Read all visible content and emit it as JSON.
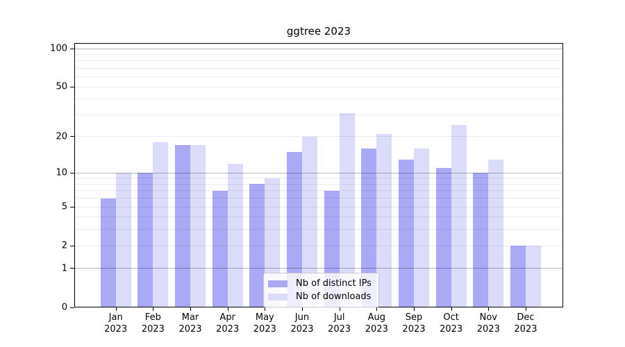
{
  "chart_data": {
    "type": "bar",
    "title": "ggtree 2023",
    "year": "2023",
    "months": [
      "Jan",
      "Feb",
      "Mar",
      "Apr",
      "May",
      "Jun",
      "Jul",
      "Aug",
      "Sep",
      "Oct",
      "Nov",
      "Dec"
    ],
    "categories": [
      "Jan 2023",
      "Feb 2023",
      "Mar 2023",
      "Apr 2023",
      "May 2023",
      "Jun 2023",
      "Jul 2023",
      "Aug 2023",
      "Sep 2023",
      "Oct 2023",
      "Nov 2023",
      "Dec 2023"
    ],
    "series": [
      {
        "name": "Nb of distinct IPs",
        "color": "#a9a9f5",
        "values": [
          6,
          10,
          17,
          7,
          8,
          15,
          7,
          16,
          13,
          11,
          10,
          2
        ]
      },
      {
        "name": "Nb of downloads",
        "color": "#dbdbfa",
        "values": [
          10,
          18,
          17,
          12,
          9,
          20,
          31,
          21,
          16,
          25,
          13,
          2
        ]
      }
    ],
    "xlabel": "",
    "ylabel": "",
    "yscale": "log1p",
    "ylim": [
      0,
      100
    ],
    "yticks": [
      0,
      1,
      2,
      5,
      10,
      20,
      50,
      100
    ],
    "grid_major": [
      1,
      10,
      100
    ],
    "grid_minor": [
      2,
      3,
      4,
      5,
      6,
      7,
      8,
      9,
      20,
      30,
      40,
      50,
      60,
      70,
      80,
      90
    ],
    "grid_on": true,
    "legend_position": "bottom-center"
  }
}
